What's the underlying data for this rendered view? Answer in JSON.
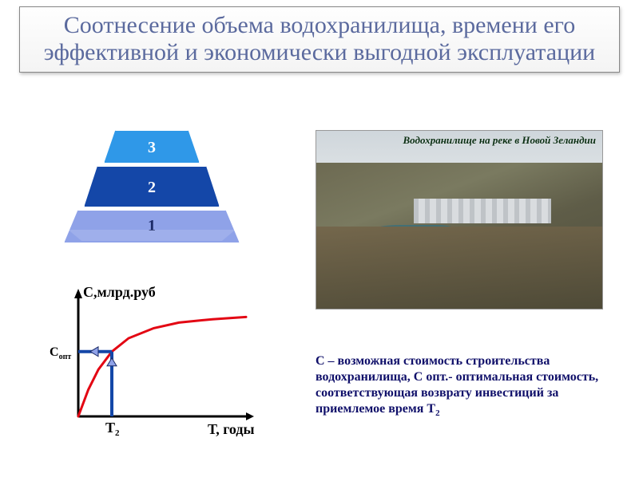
{
  "title": "Соотнесение объема водохранилища, времени его эффективной и экономически выгодной эксплуатации",
  "pyramid": {
    "levels": [
      {
        "label": "3",
        "color": "#2f98e8"
      },
      {
        "label": "2",
        "color": "#1447a8"
      },
      {
        "label": "1",
        "color": "#8fa2e8"
      }
    ]
  },
  "photo": {
    "caption": "Водохранилище на реке в Новой Зеландии",
    "caption_color": "#0a2e12",
    "caption_fontsize": 13,
    "caption_italic": true
  },
  "chart": {
    "type": "line",
    "ylabel": "С,млрд.руб",
    "xlabel": "Т, годы",
    "y_marker_label_main": "С",
    "y_marker_label_sub": "опт",
    "x_marker_label_main": "Т",
    "x_marker_label_sub": "2",
    "ylabel_fontsize": 18,
    "xlabel_fontsize": 18,
    "axis_color": "#000000",
    "axis_width": 3,
    "curve_color": "#e30613",
    "curve_width": 3,
    "marker_line_color": "#1447a8",
    "marker_line_width": 4,
    "arrow_fill": "#8fa2e8",
    "arrow_stroke": "#1b2a66",
    "xlim": [
      0,
      10
    ],
    "ylim": [
      0,
      10
    ],
    "curve_points": [
      [
        0.0,
        0.0
      ],
      [
        0.6,
        2.4
      ],
      [
        1.2,
        4.2
      ],
      [
        2.0,
        5.8
      ],
      [
        3.0,
        7.0
      ],
      [
        4.5,
        7.9
      ],
      [
        6.0,
        8.4
      ],
      [
        8.0,
        8.7
      ],
      [
        10.0,
        8.9
      ]
    ],
    "t2_x": 2.0,
    "copt_y": 5.8,
    "background": "#ffffff"
  },
  "explanation_html": "С – возможная стоимость строительства водохранилища, С опт.- оптимальная стоимость, соответствующая  возврату инвестиций за приемлемое время Т<sub>2</sub>",
  "explanation_color": "#10106a",
  "explanation_fontsize": 16
}
